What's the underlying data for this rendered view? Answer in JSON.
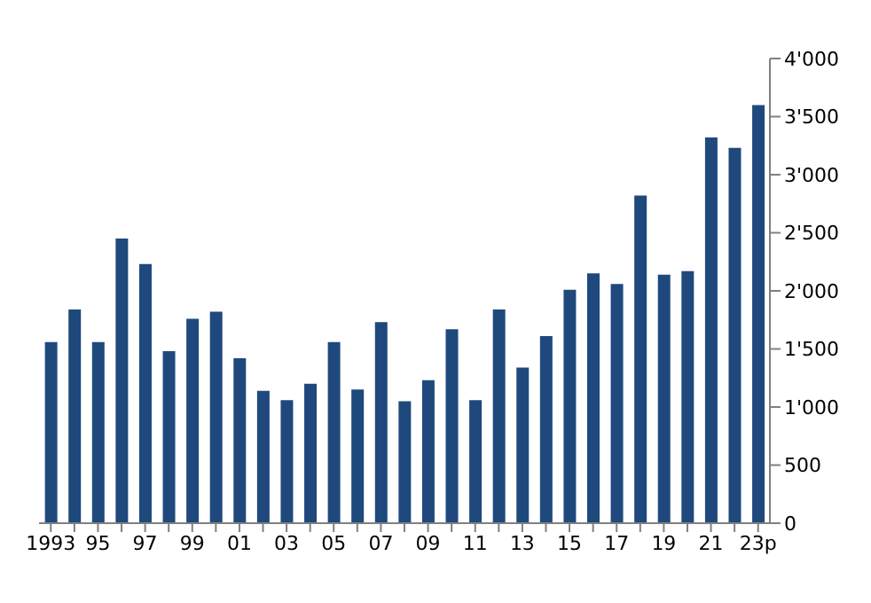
{
  "chart_data": {
    "type": "bar",
    "categories": [
      "1993",
      null,
      "95",
      null,
      "97",
      null,
      "99",
      null,
      "01",
      null,
      "03",
      null,
      "05",
      null,
      "07",
      null,
      "09",
      null,
      "11",
      null,
      "13",
      null,
      "15",
      null,
      "17",
      null,
      "19",
      null,
      "21",
      null,
      "23p"
    ],
    "values": [
      1560,
      1840,
      1560,
      2450,
      2230,
      1480,
      1760,
      1820,
      1420,
      1140,
      1060,
      1200,
      1560,
      1150,
      1730,
      1050,
      1230,
      1670,
      1060,
      1840,
      1340,
      1610,
      2010,
      2150,
      2060,
      2820,
      2140,
      2170,
      3320,
      3230,
      3600
    ],
    "color": "#1f497d",
    "ylim": [
      0,
      4000
    ],
    "yticks": [
      0,
      500,
      {
        "value": 1000,
        "label": "1'000"
      },
      {
        "value": 1500,
        "label": "1'500"
      },
      {
        "value": 2000,
        "label": "2'000"
      },
      {
        "value": 2500,
        "label": "2'500"
      },
      {
        "value": 3000,
        "label": "3'000"
      },
      {
        "value": 3500,
        "label": "3'500"
      },
      {
        "value": 4000,
        "label": "4'000"
      }
    ],
    "grid": false,
    "legend": false
  }
}
